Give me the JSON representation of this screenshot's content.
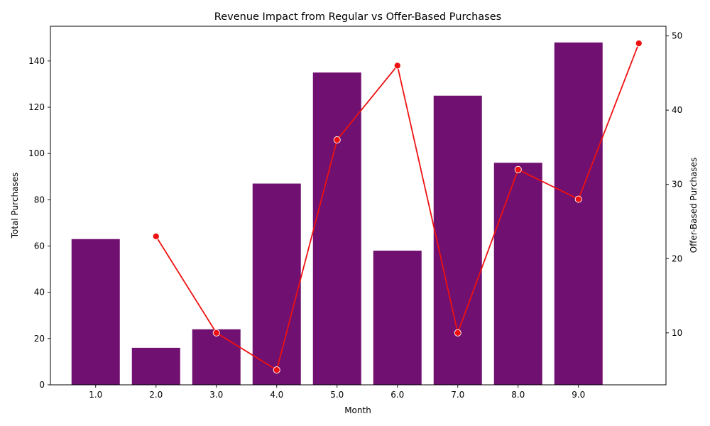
{
  "chart_data": {
    "type": "bar",
    "title": "Revenue Impact from Regular vs Offer-Based Purchases",
    "xlabel": "Month",
    "ylabel": "Total Purchases",
    "y2label": "Offer-Based Purchases",
    "categories": [
      "1.0",
      "2.0",
      "3.0",
      "4.0",
      "5.0",
      "6.0",
      "7.0",
      "8.0",
      "9.0"
    ],
    "ylim": [
      0,
      155
    ],
    "yticks": [
      0,
      20,
      40,
      60,
      80,
      100,
      120,
      140
    ],
    "y2lim": [
      3,
      51.3
    ],
    "y2ticks": [
      10,
      20,
      30,
      40,
      50
    ],
    "grid": false,
    "bar_series": {
      "color": "#701070",
      "x": [
        1,
        2,
        3,
        4,
        5,
        6,
        7,
        8,
        9
      ],
      "values": [
        63,
        16,
        24,
        87,
        135,
        58,
        125,
        96,
        148
      ]
    },
    "line_series": {
      "color": "#ee1111",
      "axis": "right",
      "x": [
        2,
        3,
        4,
        5,
        6,
        7,
        8,
        9,
        10
      ],
      "values": [
        23,
        10,
        5,
        36,
        46,
        10,
        32,
        28,
        49
      ]
    },
    "xlim": [
      0.25,
      10.45
    ]
  }
}
